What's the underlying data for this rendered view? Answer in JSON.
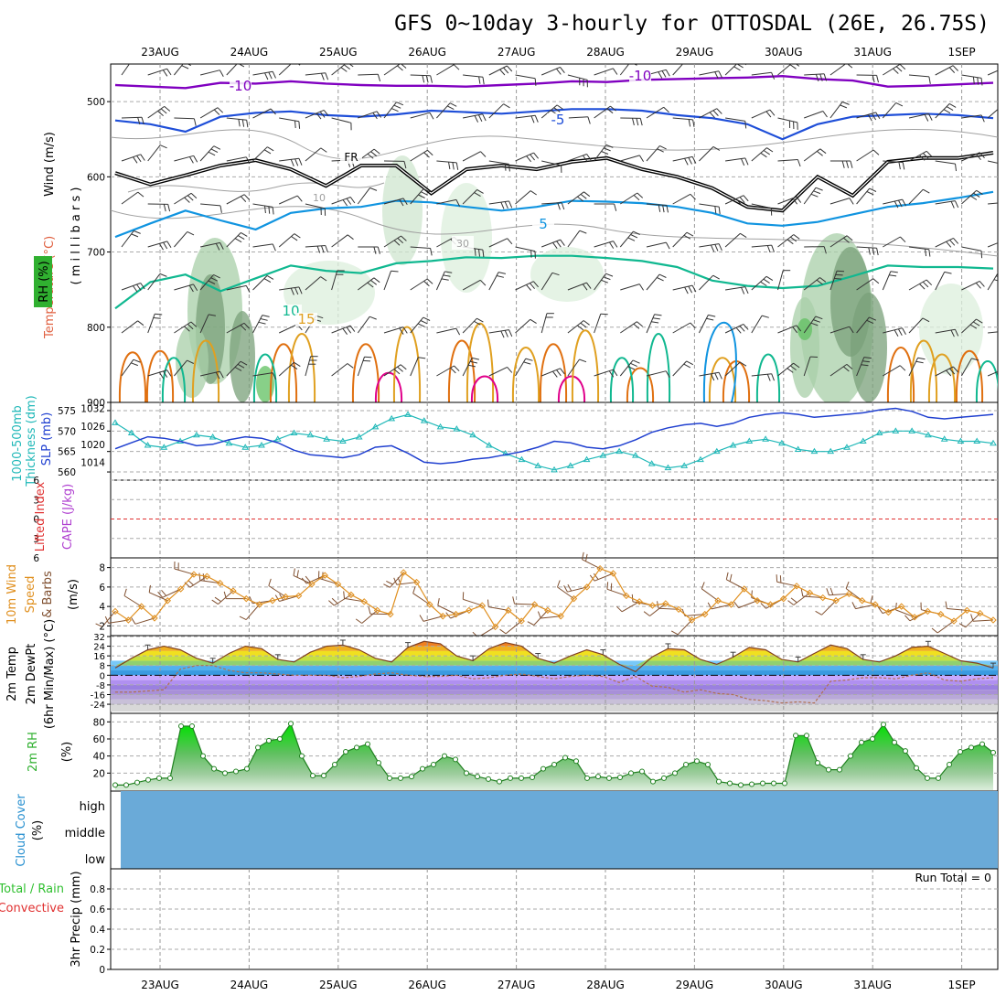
{
  "title": "GFS 0~10day 3-hourly for OTTOSDAL (26E, 26.75S)",
  "dates": [
    "23AUG",
    "24AUG",
    "25AUG",
    "26AUG",
    "27AUG",
    "28AUG",
    "29AUG",
    "30AUG",
    "31AUG",
    "1SEP"
  ],
  "colors": {
    "purple": "#8000c0",
    "blue": "#1e4ed8",
    "lightblue": "#1094e0",
    "teal": "#10b890",
    "orange_light": "#e0a020",
    "orange": "#e07010",
    "magenta": "#e0008a",
    "black": "#000000",
    "gray": "#a0a0a0",
    "cyan": "#20b8b8",
    "slp_blue": "#2040d0",
    "wind_orange": "#e09020",
    "barb_brown": "#805030",
    "rh_green": "#30b030",
    "cloud_blue": "#6aaad8",
    "cape_purple": "#b040d0",
    "li_red": "#e03030",
    "rain_green": "#30c030",
    "conv_red": "#e03030"
  },
  "chart_data": [
    {
      "type": "contour",
      "panel": "upper-air",
      "yaxis_title_parts": [
        "Wind (m/s)",
        "Temperature (°C)",
        "RH (%)"
      ],
      "ylabel": "( m i l l i b a r s )",
      "yticks": [
        500,
        600,
        700,
        800,
        900
      ],
      "ylim": [
        450,
        900
      ],
      "contour_labels": [
        {
          "text": "-10",
          "color": "purple",
          "pos": "left"
        },
        {
          "text": "-10",
          "color": "purple",
          "pos": "right"
        },
        {
          "text": "-5",
          "color": "blue"
        },
        {
          "text": "FR",
          "color": "black"
        },
        {
          "text": "5",
          "color": "lightblue"
        },
        {
          "text": "10",
          "color": "teal"
        },
        {
          "text": "15",
          "color": "orange_light"
        },
        {
          "text": "10",
          "color": "gray"
        },
        {
          "text": "30",
          "color": "gray"
        }
      ],
      "levels": {
        "t_minus10": [
          478,
          480,
          482,
          475,
          476,
          473,
          476,
          478,
          479,
          479,
          480,
          478,
          476,
          473,
          474,
          471,
          470,
          469,
          468,
          466,
          470,
          472,
          480,
          479,
          477,
          475
        ],
        "t_minus5": [
          525,
          530,
          540,
          520,
          515,
          513,
          518,
          520,
          517,
          512,
          514,
          516,
          513,
          510,
          510,
          512,
          518,
          522,
          530,
          550,
          530,
          520,
          518,
          516,
          518,
          522
        ],
        "t_fr": [
          595,
          610,
          598,
          585,
          578,
          590,
          612,
          585,
          585,
          622,
          590,
          585,
          590,
          580,
          575,
          590,
          600,
          615,
          640,
          645,
          600,
          625,
          580,
          575,
          575,
          568
        ],
        "t_plus5": [
          680,
          662,
          645,
          658,
          670,
          648,
          642,
          640,
          632,
          634,
          640,
          645,
          640,
          632,
          633,
          635,
          640,
          648,
          662,
          665,
          660,
          650,
          640,
          635,
          628,
          620
        ],
        "t_plus10": [
          775,
          740,
          730,
          752,
          735,
          718,
          725,
          728,
          715,
          712,
          707,
          708,
          705,
          705,
          708,
          712,
          720,
          738,
          745,
          748,
          745,
          732,
          718,
          720,
          720,
          722
        ]
      }
    },
    {
      "type": "line",
      "panel": "thickness-slp",
      "series": [
        {
          "name": "1000-500mb Thickness (dm)",
          "color": "cyan",
          "axis": "left",
          "values": [
            572.0,
            569.5,
            566.5,
            566.0,
            567.5,
            569.0,
            568.5,
            567.0,
            566.0,
            566.5,
            568.0,
            569.5,
            569.0,
            568.0,
            567.5,
            568.5,
            571.0,
            573.0,
            574.0,
            572.5,
            571.0,
            570.5,
            569.0,
            566.5,
            564.5,
            563.0,
            561.5,
            560.5,
            561.5,
            563.0,
            564.0,
            565.0,
            564.0,
            562.0,
            561.0,
            561.5,
            563.0,
            565.0,
            566.5,
            567.5,
            568.0,
            567.0,
            565.5,
            565.0,
            565.0,
            566.0,
            567.5,
            569.5,
            570.0,
            570.0,
            569.0,
            568.0,
            567.5,
            567.5,
            567.0
          ]
        },
        {
          "name": "SLP (mb)",
          "color": "slp_blue",
          "axis": "right",
          "values": [
            1018.5,
            1020.5,
            1022.5,
            1022.0,
            1021.0,
            1019.5,
            1020.0,
            1021.5,
            1022.5,
            1022.0,
            1020.5,
            1018.0,
            1016.5,
            1016.0,
            1015.5,
            1016.5,
            1019.0,
            1019.5,
            1017.0,
            1014.0,
            1013.5,
            1014.0,
            1015.0,
            1015.5,
            1016.5,
            1017.5,
            1019.0,
            1021.0,
            1020.5,
            1019.0,
            1018.5,
            1019.5,
            1021.5,
            1024.0,
            1025.5,
            1026.5,
            1027.0,
            1026.0,
            1027.0,
            1029.0,
            1030.0,
            1030.5,
            1030.0,
            1029.0,
            1029.5,
            1030.0,
            1030.5,
            1031.5,
            1032.0,
            1031.0,
            1029.0,
            1028.5,
            1029.0,
            1029.5,
            1030.0
          ]
        }
      ],
      "left_ticks": [
        560,
        565,
        570,
        575
      ],
      "right_ticks": [
        1014,
        1020,
        1026,
        1032
      ],
      "left_labels": [
        "1000-500mb",
        "Thickness (dm)"
      ],
      "right_label": "SLP (mb)",
      "ylim_left": [
        558,
        577
      ],
      "ylim_right": [
        1008,
        1034
      ]
    },
    {
      "type": "line",
      "panel": "cape-li",
      "ylabel_left": "Lifted Index",
      "ylabel_right": "CAPE (J/kg)",
      "yticks": [
        -6,
        -3,
        0,
        3,
        6
      ],
      "tick_labels": [
        "6",
        "3",
        "0",
        "3",
        "6"
      ],
      "ylim": [
        -6,
        6
      ],
      "series": [
        {
          "name": "Lifted Index",
          "color": "li_red",
          "values": []
        },
        {
          "name": "CAPE",
          "color": "cape_purple",
          "values": []
        }
      ]
    },
    {
      "type": "line",
      "panel": "wind10m",
      "ylabel_parts": [
        "10m Wind",
        "Speed",
        "& Barbs",
        "(m/s)"
      ],
      "yticks": [
        2,
        4,
        6,
        8
      ],
      "ylim": [
        1,
        9
      ],
      "series": [
        {
          "name": "10m Wind Speed",
          "color": "wind_orange",
          "values": [
            3.5,
            2.6,
            4.0,
            2.8,
            4.6,
            5.8,
            7.3,
            7.1,
            6.4,
            5.6,
            4.8,
            4.2,
            4.6,
            5.0,
            5.1,
            6.3,
            7.2,
            6.3,
            5.2,
            4.5,
            3.6,
            3.2,
            7.5,
            6.5,
            4.2,
            3.0,
            3.2,
            3.6,
            4.1,
            1.9,
            3.6,
            2.5,
            4.2,
            3.6,
            3.0,
            4.8,
            6.0,
            7.9,
            7.4,
            5.1,
            4.5,
            4.1,
            4.3,
            3.7,
            2.6,
            3.2,
            4.6,
            4.2,
            5.8,
            4.6,
            4.2,
            4.8,
            6.1,
            5.4,
            4.9,
            4.6,
            5.3,
            4.6,
            4.2,
            3.4,
            4.0,
            2.9,
            3.5,
            3.2,
            2.5,
            3.6,
            3.3,
            2.6
          ]
        }
      ]
    },
    {
      "type": "area",
      "panel": "temp2m",
      "ylabel_parts": [
        "2m Temp",
        "2m DewPt",
        "(6hr Min/Max) (°C)"
      ],
      "yticks": [
        32,
        24,
        16,
        8,
        0,
        -8,
        -16,
        -24
      ],
      "ylim": [
        -30,
        32
      ],
      "series": [
        {
          "name": "2m Temp",
          "color": "black",
          "values": [
            6,
            14,
            21,
            24,
            21,
            14,
            10,
            18,
            24,
            22,
            13,
            11,
            19,
            24,
            25,
            21,
            14,
            11,
            23,
            28,
            26,
            16,
            12,
            22,
            27,
            24,
            14,
            10,
            16,
            21,
            17,
            9,
            3,
            15,
            22,
            21,
            13,
            9,
            15,
            23,
            21,
            13,
            11,
            18,
            25,
            22,
            13,
            11,
            16,
            23,
            24,
            18,
            12,
            10,
            6
          ]
        },
        {
          "name": "2m DewPt",
          "color": "orange",
          "values": [
            -14,
            -14,
            -13,
            -12,
            5,
            8,
            8,
            4,
            2,
            2,
            1,
            0,
            0,
            0,
            -2,
            -1,
            1,
            2,
            0,
            -1,
            -1,
            0,
            -3,
            -2,
            0,
            1,
            -1,
            -3,
            -1,
            0,
            -1,
            -6,
            -1,
            -9,
            -10,
            -14,
            -12,
            -15,
            -16,
            -20,
            -21,
            -23,
            -22,
            -23,
            -5,
            -4,
            -2,
            -2,
            -3,
            0,
            2,
            -4,
            -5,
            -3,
            -2
          ]
        }
      ]
    },
    {
      "type": "area",
      "panel": "rh2m",
      "ylabel_parts": [
        "2m RH",
        "(%)"
      ],
      "yticks": [
        20,
        40,
        60,
        80
      ],
      "ylim": [
        0,
        90
      ],
      "series": [
        {
          "name": "2m RH",
          "color": "rh_green",
          "values": [
            6,
            6,
            9,
            12,
            14,
            14,
            75,
            75,
            40,
            25,
            20,
            22,
            25,
            50,
            58,
            60,
            78,
            40,
            17,
            17,
            30,
            45,
            50,
            54,
            32,
            14,
            14,
            16,
            25,
            30,
            40,
            36,
            20,
            16,
            13,
            10,
            14,
            14,
            15,
            25,
            30,
            38,
            34,
            14,
            16,
            14,
            15,
            20,
            22,
            10,
            14,
            20,
            30,
            34,
            30,
            10,
            8,
            6,
            7,
            8,
            8,
            8,
            64,
            64,
            32,
            24,
            24,
            40,
            56,
            60,
            77,
            56,
            46,
            26,
            14,
            14,
            30,
            45,
            50,
            54,
            44
          ]
        }
      ]
    },
    {
      "type": "bar",
      "panel": "cloud",
      "ylabel_parts": [
        "Cloud Cover",
        "(%)"
      ],
      "categories": [
        "high",
        "middle",
        "low"
      ],
      "series": [
        {
          "name": "Cloud Cover",
          "color": "cloud_blue",
          "values": [
            100,
            100,
            100
          ]
        }
      ]
    },
    {
      "type": "bar",
      "panel": "precip",
      "ylabel_parts": [
        "3hr Precip (mm)",
        "Total / Rain",
        "Convective"
      ],
      "yticks": [
        0,
        0.2,
        0.4,
        0.6,
        0.8
      ],
      "ylim": [
        0,
        1
      ],
      "run_total": "Run Total = 0",
      "series": [
        {
          "name": "Total / Rain",
          "color": "rain_green",
          "values": []
        },
        {
          "name": "Convective",
          "color": "conv_red",
          "values": []
        }
      ]
    }
  ]
}
